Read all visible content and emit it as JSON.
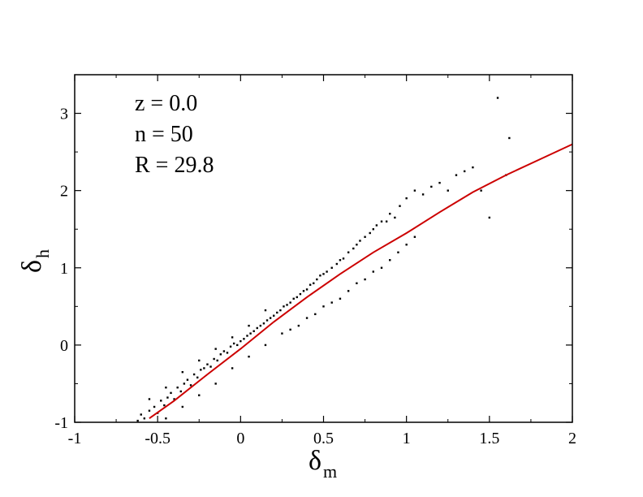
{
  "chart_data": {
    "type": "scatter",
    "title": "",
    "xlabel": {
      "symbol": "δ",
      "subscript": "m"
    },
    "ylabel": {
      "symbol": "δ",
      "subscript": "h"
    },
    "xlim": [
      -1,
      2
    ],
    "ylim": [
      -1,
      3.5
    ],
    "x_ticks": [
      "-1",
      "-0.5",
      "0",
      "0.5",
      "1",
      "1.5",
      "2"
    ],
    "x_tick_values": [
      -1,
      -0.5,
      0,
      0.5,
      1,
      1.5,
      2
    ],
    "y_ticks": [
      "-1",
      "0",
      "1",
      "2",
      "3"
    ],
    "y_tick_values": [
      -1,
      0,
      1,
      2,
      3
    ],
    "grid": false,
    "annotations": [
      "z = 0.0",
      "n = 50",
      "R = 29.8"
    ],
    "colors": {
      "points": "#000000",
      "fit_line": "#cc0000"
    },
    "series": [
      {
        "kind": "points",
        "points": [
          [
            -0.62,
            -0.98
          ],
          [
            -0.6,
            -0.9
          ],
          [
            -0.58,
            -0.95
          ],
          [
            -0.55,
            -0.85
          ],
          [
            -0.52,
            -0.8
          ],
          [
            -0.5,
            -0.88
          ],
          [
            -0.48,
            -0.72
          ],
          [
            -0.46,
            -0.78
          ],
          [
            -0.44,
            -0.68
          ],
          [
            -0.42,
            -0.62
          ],
          [
            -0.4,
            -0.7
          ],
          [
            -0.38,
            -0.55
          ],
          [
            -0.36,
            -0.6
          ],
          [
            -0.34,
            -0.5
          ],
          [
            -0.32,
            -0.45
          ],
          [
            -0.3,
            -0.52
          ],
          [
            -0.28,
            -0.38
          ],
          [
            -0.26,
            -0.42
          ],
          [
            -0.24,
            -0.32
          ],
          [
            -0.22,
            -0.3
          ],
          [
            -0.2,
            -0.25
          ],
          [
            -0.18,
            -0.28
          ],
          [
            -0.16,
            -0.18
          ],
          [
            -0.14,
            -0.2
          ],
          [
            -0.12,
            -0.12
          ],
          [
            -0.1,
            -0.08
          ],
          [
            -0.08,
            -0.1
          ],
          [
            -0.06,
            -0.02
          ],
          [
            -0.04,
            0.02
          ],
          [
            -0.02,
            0.0
          ],
          [
            0.0,
            0.05
          ],
          [
            0.02,
            0.08
          ],
          [
            0.04,
            0.12
          ],
          [
            0.06,
            0.15
          ],
          [
            0.08,
            0.18
          ],
          [
            0.1,
            0.22
          ],
          [
            0.12,
            0.25
          ],
          [
            0.14,
            0.28
          ],
          [
            0.16,
            0.32
          ],
          [
            0.18,
            0.35
          ],
          [
            0.2,
            0.38
          ],
          [
            0.22,
            0.42
          ],
          [
            0.24,
            0.45
          ],
          [
            0.26,
            0.5
          ],
          [
            0.28,
            0.52
          ],
          [
            0.3,
            0.55
          ],
          [
            0.32,
            0.6
          ],
          [
            0.34,
            0.62
          ],
          [
            0.36,
            0.66
          ],
          [
            0.38,
            0.7
          ],
          [
            0.4,
            0.72
          ],
          [
            0.42,
            0.78
          ],
          [
            0.44,
            0.8
          ],
          [
            0.46,
            0.85
          ],
          [
            0.48,
            0.9
          ],
          [
            0.5,
            0.92
          ],
          [
            0.52,
            0.95
          ],
          [
            0.55,
            1.0
          ],
          [
            0.58,
            1.05
          ],
          [
            0.6,
            1.1
          ],
          [
            0.62,
            1.12
          ],
          [
            0.65,
            1.2
          ],
          [
            0.68,
            1.25
          ],
          [
            0.7,
            1.3
          ],
          [
            0.72,
            1.35
          ],
          [
            0.75,
            1.4
          ],
          [
            0.78,
            1.45
          ],
          [
            0.8,
            1.5
          ],
          [
            0.82,
            1.55
          ],
          [
            0.85,
            1.6
          ],
          [
            0.88,
            1.6
          ],
          [
            0.9,
            1.7
          ],
          [
            0.93,
            1.65
          ],
          [
            0.96,
            1.8
          ],
          [
            1.0,
            1.9
          ],
          [
            1.05,
            2.0
          ],
          [
            1.1,
            1.95
          ],
          [
            1.15,
            2.05
          ],
          [
            1.2,
            2.1
          ],
          [
            1.25,
            2.0
          ],
          [
            1.3,
            2.2
          ],
          [
            1.35,
            2.25
          ],
          [
            1.4,
            2.3
          ],
          [
            1.45,
            2.0
          ],
          [
            1.5,
            1.65
          ],
          [
            1.55,
            3.2
          ],
          [
            1.6,
            2.2
          ],
          [
            1.62,
            2.68
          ],
          [
            0.3,
            0.2
          ],
          [
            0.35,
            0.25
          ],
          [
            0.4,
            0.35
          ],
          [
            0.45,
            0.4
          ],
          [
            0.5,
            0.5
          ],
          [
            0.55,
            0.55
          ],
          [
            0.6,
            0.6
          ],
          [
            0.65,
            0.7
          ],
          [
            0.7,
            0.8
          ],
          [
            0.75,
            0.85
          ],
          [
            0.8,
            0.95
          ],
          [
            0.85,
            1.0
          ],
          [
            0.9,
            1.1
          ],
          [
            0.95,
            1.2
          ],
          [
            1.0,
            1.3
          ],
          [
            1.05,
            1.4
          ],
          [
            -0.45,
            -0.95
          ],
          [
            -0.35,
            -0.8
          ],
          [
            -0.25,
            -0.65
          ],
          [
            -0.15,
            -0.5
          ],
          [
            -0.05,
            -0.3
          ],
          [
            0.05,
            -0.15
          ],
          [
            0.15,
            0.0
          ],
          [
            0.25,
            0.15
          ],
          [
            -0.55,
            -0.7
          ],
          [
            -0.45,
            -0.55
          ],
          [
            -0.35,
            -0.35
          ],
          [
            -0.25,
            -0.2
          ],
          [
            -0.15,
            -0.05
          ],
          [
            -0.05,
            0.1
          ],
          [
            0.05,
            0.25
          ],
          [
            0.15,
            0.45
          ]
        ]
      },
      {
        "kind": "fit_line",
        "points": [
          [
            -0.55,
            -0.95
          ],
          [
            -0.4,
            -0.72
          ],
          [
            -0.2,
            -0.38
          ],
          [
            0.0,
            -0.05
          ],
          [
            0.2,
            0.3
          ],
          [
            0.4,
            0.62
          ],
          [
            0.6,
            0.92
          ],
          [
            0.8,
            1.2
          ],
          [
            1.0,
            1.45
          ],
          [
            1.2,
            1.72
          ],
          [
            1.4,
            1.98
          ],
          [
            1.6,
            2.2
          ],
          [
            1.8,
            2.4
          ],
          [
            2.0,
            2.6
          ]
        ]
      }
    ]
  }
}
